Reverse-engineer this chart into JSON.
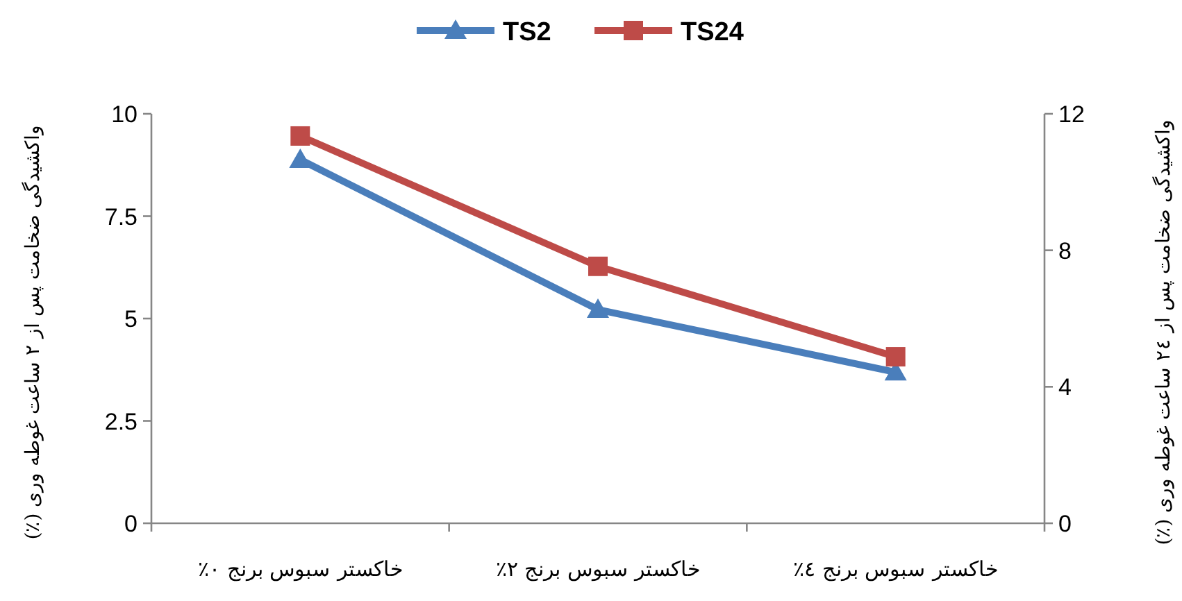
{
  "chart_data": {
    "type": "line",
    "categories": [
      "خاکستر سبوس برنج ۰٪",
      "خاکستر سبوس برنج ۲٪",
      "خاکستر سبوس برنج ٤٪"
    ],
    "series": [
      {
        "name": "TS2",
        "color": "#4a7ebb",
        "marker": "triangle",
        "values": [
          8.88,
          5.22,
          3.69
        ]
      },
      {
        "name": "TS24",
        "color": "#be4b48",
        "marker": "square",
        "axis": "y2",
        "values": [
          11.35,
          7.53,
          4.88
        ]
      }
    ],
    "ylabel": "واکشیدگی ضخامت پس از ۲ ساعت غوطه وری (٪)",
    "y2label": "واکشیدگی ضخامت پس از ۲٤ ساعت غوطه وری (٪)",
    "ylim": [
      0,
      10
    ],
    "yticks": [
      0,
      2.5,
      5,
      7.5,
      10
    ],
    "y2lim": [
      0,
      12
    ],
    "y2ticks": [
      0,
      4,
      8,
      12
    ],
    "grid": false,
    "legend": "top",
    "line_style": "solid"
  }
}
